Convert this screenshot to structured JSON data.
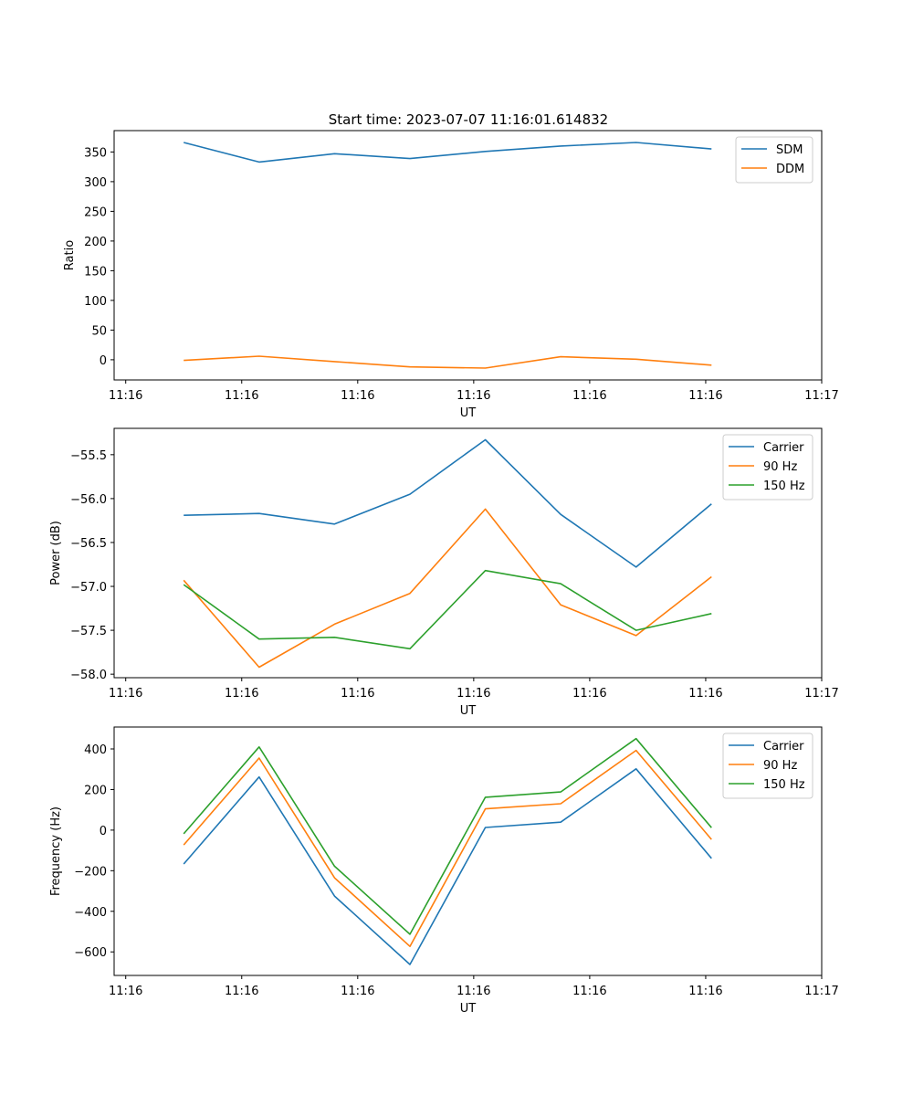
{
  "figure_title": "Start time: 2023-07-07 11:16:01.614832",
  "colors": {
    "blue": "#1f77b4",
    "orange": "#ff7f0e",
    "green": "#2ca02c"
  },
  "chart_data": [
    {
      "type": "line",
      "title": "Start time: 2023-07-07 11:16:01.614832",
      "xlabel": "UT",
      "ylabel": "Ratio",
      "x": [
        0.5,
        1.15,
        1.8,
        2.45,
        3.1,
        3.75,
        4.4,
        5.05
      ],
      "xlim": [
        -0.1,
        6.0
      ],
      "xticks": [
        0,
        1,
        2,
        3,
        4,
        5,
        6
      ],
      "xticklabels": [
        "11:16",
        "11:16",
        "11:16",
        "11:16",
        "11:16",
        "11:16",
        "11:17"
      ],
      "ylim": [
        -34,
        386
      ],
      "yticks": [
        0,
        50,
        100,
        150,
        200,
        250,
        300,
        350
      ],
      "legend": "top-right",
      "series": [
        {
          "name": "SDM",
          "color": "#1f77b4",
          "values": [
            366,
            333,
            347,
            339,
            351,
            360,
            366,
            355
          ]
        },
        {
          "name": "DDM",
          "color": "#ff7f0e",
          "values": [
            -1,
            6,
            -3,
            -12,
            -14,
            5,
            1,
            -9
          ]
        }
      ]
    },
    {
      "type": "line",
      "title": "",
      "xlabel": "UT",
      "ylabel": "Power (dB)",
      "x": [
        0.5,
        1.15,
        1.8,
        2.45,
        3.1,
        3.75,
        4.4,
        5.05
      ],
      "xlim": [
        -0.1,
        6.0
      ],
      "xticks": [
        0,
        1,
        2,
        3,
        4,
        5,
        6
      ],
      "xticklabels": [
        "11:16",
        "11:16",
        "11:16",
        "11:16",
        "11:16",
        "11:16",
        "11:17"
      ],
      "ylim": [
        -58.04,
        -55.2
      ],
      "yticks": [
        -58.0,
        -57.5,
        -57.0,
        -56.5,
        -56.0,
        -55.5
      ],
      "yticklabels": [
        "−58.0",
        "−57.5",
        "−57.0",
        "−56.5",
        "−56.0",
        "−55.5"
      ],
      "legend": "top-right",
      "series": [
        {
          "name": "Carrier",
          "color": "#1f77b4",
          "values": [
            -56.19,
            -56.17,
            -56.29,
            -55.95,
            -55.33,
            -56.18,
            -56.78,
            -56.06
          ]
        },
        {
          "name": "90 Hz",
          "color": "#ff7f0e",
          "values": [
            -56.93,
            -57.92,
            -57.43,
            -57.08,
            -56.12,
            -57.21,
            -57.56,
            -56.89
          ]
        },
        {
          "name": "150 Hz",
          "color": "#2ca02c",
          "values": [
            -56.98,
            -57.6,
            -57.58,
            -57.71,
            -56.82,
            -56.97,
            -57.5,
            -57.31
          ]
        }
      ]
    },
    {
      "type": "line",
      "title": "",
      "xlabel": "UT",
      "ylabel": "Frequency (Hz)",
      "x": [
        0.5,
        1.15,
        1.8,
        2.45,
        3.1,
        3.75,
        4.4,
        5.05
      ],
      "xlim": [
        -0.1,
        6.0
      ],
      "xticks": [
        0,
        1,
        2,
        3,
        4,
        5,
        6
      ],
      "xticklabels": [
        "11:16",
        "11:16",
        "11:16",
        "11:16",
        "11:16",
        "11:16",
        "11:17"
      ],
      "ylim": [
        -716,
        508
      ],
      "yticks": [
        -600,
        -400,
        -200,
        0,
        200,
        400
      ],
      "yticklabels": [
        "−600",
        "−400",
        "−200",
        "0",
        "200",
        "400"
      ],
      "legend": "top-right",
      "series": [
        {
          "name": "Carrier",
          "color": "#1f77b4",
          "values": [
            -167,
            262,
            -325,
            -662,
            13,
            39,
            302,
            -139
          ]
        },
        {
          "name": "90 Hz",
          "color": "#ff7f0e",
          "values": [
            -73,
            355,
            -235,
            -573,
            105,
            130,
            393,
            -46
          ]
        },
        {
          "name": "150 Hz",
          "color": "#2ca02c",
          "values": [
            -18,
            410,
            -178,
            -513,
            162,
            188,
            451,
            12
          ]
        }
      ]
    }
  ]
}
